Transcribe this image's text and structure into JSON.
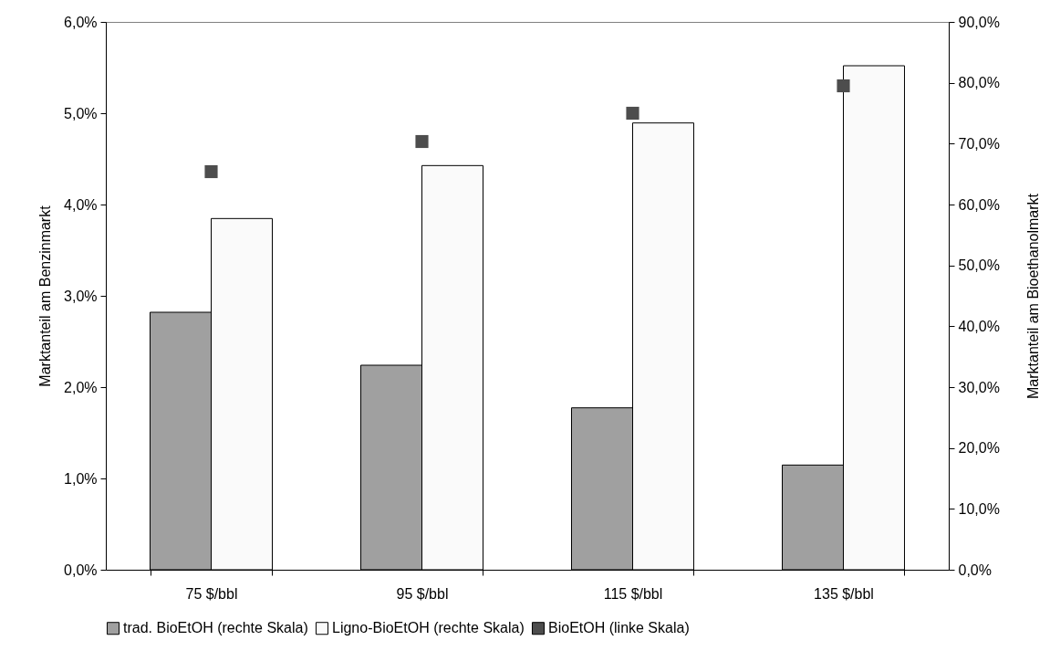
{
  "chart_data": {
    "type": "bar",
    "categories": [
      "75 $/bbl",
      "95 $/bbl",
      "115 $/bbl",
      "135 $/bbl"
    ],
    "series": [
      {
        "name": "trad. BioEtOH (rechte Skala)",
        "axis": "y2",
        "color": "#a0a0a0",
        "values": [
          42.3,
          33.6,
          26.6,
          17.2
        ]
      },
      {
        "name": "Ligno-BioEtOH (rechte Skala)",
        "axis": "y2",
        "color": "#fafafa",
        "values": [
          57.7,
          66.4,
          73.4,
          82.8
        ]
      },
      {
        "name": "BioEtOH (linke Skala)",
        "type": "scatter",
        "axis": "y",
        "color": "#4d4d4d",
        "marker": "square",
        "values": [
          4.36,
          4.69,
          5.0,
          5.3
        ]
      }
    ],
    "ylabel": "Marktanteil am Benzinmarkt",
    "y2label": "Marktanteil am Bioethanolmarkt",
    "ylim": [
      0,
      6
    ],
    "yticks": [
      {
        "value": 0,
        "label": "0,0%"
      },
      {
        "value": 1,
        "label": "1,0%"
      },
      {
        "value": 2,
        "label": "2,0%"
      },
      {
        "value": 3,
        "label": "3,0%"
      },
      {
        "value": 4,
        "label": "4,0%"
      },
      {
        "value": 5,
        "label": "5,0%"
      },
      {
        "value": 6,
        "label": "6,0%"
      }
    ],
    "y2lim": [
      0,
      90
    ],
    "y2ticks": [
      {
        "value": 0,
        "label": "0,0%"
      },
      {
        "value": 10,
        "label": "10,0%"
      },
      {
        "value": 20,
        "label": "20,0%"
      },
      {
        "value": 30,
        "label": "30,0%"
      },
      {
        "value": 40,
        "label": "40,0%"
      },
      {
        "value": 50,
        "label": "50,0%"
      },
      {
        "value": 60,
        "label": "60,0%"
      },
      {
        "value": 70,
        "label": "70,0%"
      },
      {
        "value": 80,
        "label": "80,0%"
      },
      {
        "value": 90,
        "label": "90,0%"
      }
    ],
    "grid": false,
    "legend": "bottom"
  }
}
